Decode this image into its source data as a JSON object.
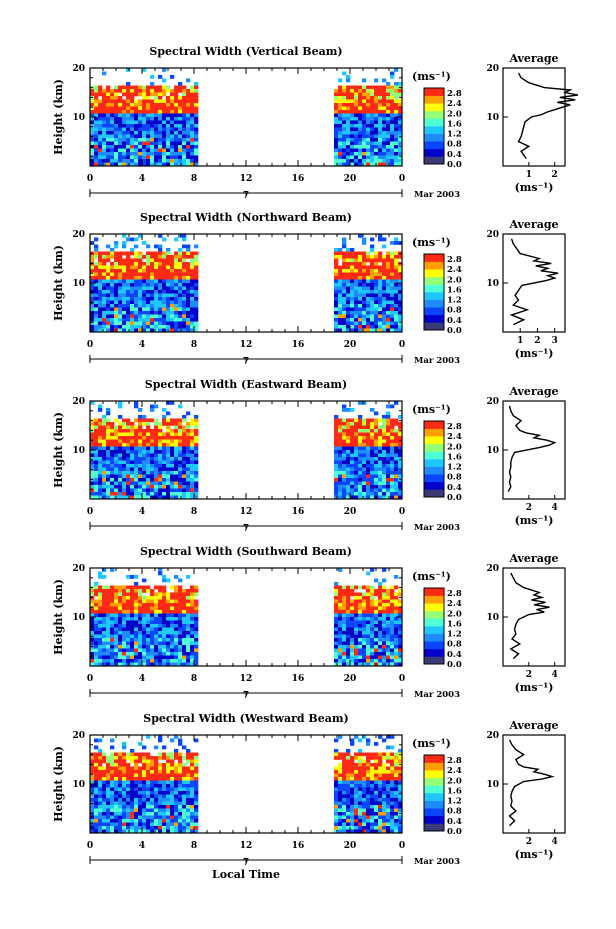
{
  "chart_data": [
    {
      "type": "heatmap",
      "title": "Spectral Width (Vertical Beam)",
      "ylabel": "Height (km)",
      "x_ticks": [
        "0",
        "4",
        "8",
        "12",
        "16",
        "20",
        "0"
      ],
      "y_ticks": [
        "10",
        "20"
      ],
      "date_tick": "7",
      "date_label": "Mar 2003",
      "colorbar_unit": "(ms⁻¹)",
      "colorbar_ticks": [
        "2.8",
        "2.4",
        "2.0",
        "1.6",
        "1.2",
        "0.8",
        "0.4",
        "0.0"
      ],
      "data_gap_hours": [
        8.5,
        18.5
      ],
      "average": {
        "title": "Average",
        "xlabel": "(ms⁻¹)",
        "x_ticks": [
          "1",
          "2"
        ],
        "y_ticks": [
          "10",
          "20"
        ],
        "height_km": [
          1.5,
          3,
          4,
          5,
          6,
          7,
          8,
          9,
          10,
          10.5,
          11,
          11.5,
          12,
          12.5,
          13,
          13.5,
          14,
          14.5,
          15,
          15.5,
          16,
          17,
          18,
          19
        ],
        "value": [
          0.9,
          0.7,
          1.0,
          0.6,
          0.7,
          0.75,
          0.8,
          0.85,
          1.1,
          1.5,
          1.7,
          2.0,
          2.3,
          2.6,
          2.1,
          2.8,
          2.2,
          2.9,
          2.4,
          2.6,
          1.6,
          1.0,
          0.7,
          0.6
        ]
      }
    },
    {
      "type": "heatmap",
      "title": "Spectral Width (Northward Beam)",
      "ylabel": "Height (km)",
      "x_ticks": [
        "0",
        "4",
        "8",
        "12",
        "16",
        "20",
        "0"
      ],
      "y_ticks": [
        "10",
        "20"
      ],
      "date_tick": "7",
      "date_label": "Mar 2003",
      "colorbar_unit": "(ms⁻¹)",
      "colorbar_ticks": [
        "2.8",
        "2.4",
        "2.0",
        "1.6",
        "1.2",
        "0.8",
        "0.4",
        "0.0"
      ],
      "data_gap_hours": [
        8.5,
        18.5
      ],
      "average": {
        "title": "Average",
        "xlabel": "(ms⁻¹)",
        "x_ticks": [
          "1",
          "2",
          "3"
        ],
        "y_ticks": [
          "10",
          "20"
        ],
        "height_km": [
          1.5,
          2.5,
          3.5,
          4.5,
          5.5,
          6.5,
          7.5,
          8.5,
          9.5,
          10.5,
          11,
          11.5,
          12,
          12.5,
          13,
          13.5,
          14,
          14.5,
          15,
          16,
          17,
          18,
          19
        ],
        "value": [
          0.6,
          1.2,
          0.5,
          1.4,
          0.6,
          0.9,
          0.7,
          0.9,
          1.1,
          2.5,
          3.0,
          2.6,
          3.2,
          2.2,
          2.6,
          1.9,
          2.8,
          1.8,
          2.1,
          1.0,
          0.8,
          0.6,
          0.5
        ]
      }
    },
    {
      "type": "heatmap",
      "title": "Spectral Width (Eastward Beam)",
      "ylabel": "Height (km)",
      "x_ticks": [
        "0",
        "4",
        "8",
        "12",
        "16",
        "20",
        "0"
      ],
      "y_ticks": [
        "10",
        "20"
      ],
      "date_tick": "7",
      "date_label": "Mar 2003",
      "colorbar_unit": "(ms⁻¹)",
      "colorbar_ticks": [
        "2.8",
        "2.4",
        "2.0",
        "1.6",
        "1.2",
        "0.8",
        "0.4",
        "0.0"
      ],
      "data_gap_hours": [
        8.5,
        18.5
      ],
      "average": {
        "title": "Average",
        "xlabel": "(ms⁻¹)",
        "x_ticks": [
          "2",
          "4"
        ],
        "y_ticks": [
          "10",
          "20"
        ],
        "height_km": [
          1.5,
          2.5,
          3.5,
          4.5,
          5.5,
          6.5,
          7.5,
          8.5,
          9.5,
          10.5,
          11,
          11.5,
          12,
          12.5,
          13,
          13.5,
          14,
          15,
          16,
          17,
          18,
          19
        ],
        "value": [
          0.4,
          0.6,
          0.5,
          0.6,
          0.5,
          0.6,
          0.6,
          0.7,
          0.9,
          2.8,
          3.6,
          4.0,
          3.4,
          2.4,
          2.8,
          1.8,
          1.3,
          1.0,
          1.4,
          0.8,
          0.6,
          0.5
        ]
      }
    },
    {
      "type": "heatmap",
      "title": "Spectral Width (Southward Beam)",
      "ylabel": "Height (km)",
      "x_ticks": [
        "0",
        "4",
        "8",
        "12",
        "16",
        "20",
        "0"
      ],
      "y_ticks": [
        "10",
        "20"
      ],
      "date_tick": "7",
      "date_label": "Mar 2003",
      "colorbar_unit": "(ms⁻¹)",
      "colorbar_ticks": [
        "2.8",
        "2.4",
        "2.0",
        "1.6",
        "1.2",
        "0.8",
        "0.4",
        "0.0"
      ],
      "data_gap_hours": [
        8.5,
        18.5
      ],
      "average": {
        "title": "Average",
        "xlabel": "(ms⁻¹)",
        "x_ticks": [
          "2",
          "4"
        ],
        "y_ticks": [
          "10",
          "20"
        ],
        "height_km": [
          1.5,
          2.5,
          3.5,
          4.5,
          5.5,
          6.5,
          7.5,
          8.5,
          9.5,
          10.5,
          11,
          11.5,
          12,
          12.5,
          13,
          13.5,
          14,
          14.5,
          15,
          16,
          17,
          18,
          19
        ],
        "value": [
          0.8,
          1.2,
          0.6,
          1.3,
          0.7,
          1.0,
          0.9,
          1.0,
          1.2,
          2.0,
          3.2,
          2.6,
          3.6,
          2.4,
          3.3,
          2.2,
          3.0,
          2.4,
          2.8,
          1.6,
          1.0,
          0.8,
          0.6
        ]
      }
    },
    {
      "type": "heatmap",
      "title": "Spectral Width (Westward Beam)",
      "ylabel": "Height (km)",
      "xlabel": "Local Time",
      "x_ticks": [
        "0",
        "4",
        "8",
        "12",
        "16",
        "20",
        "0"
      ],
      "y_ticks": [
        "10",
        "20"
      ],
      "date_tick": "7",
      "date_label": "Mar 2003",
      "colorbar_unit": "(ms⁻¹)",
      "colorbar_ticks": [
        "2.8",
        "2.4",
        "2.0",
        "1.6",
        "1.2",
        "0.8",
        "0.4",
        "0.0"
      ],
      "data_gap_hours": [
        8.5,
        18.5
      ],
      "average": {
        "title": "Average",
        "xlabel": "(ms⁻¹)",
        "x_ticks": [
          "2",
          "4"
        ],
        "y_ticks": [
          "10",
          "20"
        ],
        "height_km": [
          1.5,
          2.5,
          3.5,
          4.5,
          5.5,
          6.5,
          7.5,
          8.5,
          9.5,
          10.5,
          11,
          11.5,
          12,
          12.5,
          13,
          13.5,
          14,
          15,
          16,
          17,
          18,
          19
        ],
        "value": [
          0.5,
          0.9,
          0.5,
          1.0,
          0.6,
          0.7,
          0.6,
          0.7,
          0.9,
          1.6,
          3.0,
          3.8,
          3.2,
          2.4,
          2.7,
          1.6,
          1.2,
          1.0,
          1.6,
          1.0,
          0.7,
          0.5
        ]
      }
    }
  ]
}
